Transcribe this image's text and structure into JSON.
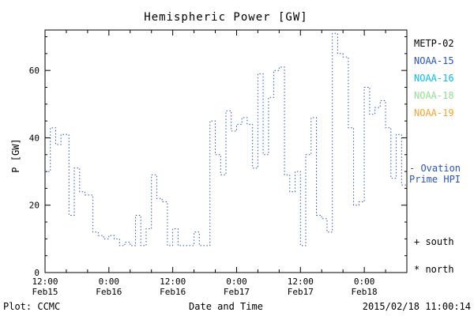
{
  "title": "Hemispheric Power [GW]",
  "ylabel": "P [GW]",
  "xlabel": "Date and Time",
  "footer": {
    "left": "Plot: CCMC",
    "right": "2015/02/18 11:00:14"
  },
  "legend": [
    {
      "label": "METP-02",
      "color": "#000000"
    },
    {
      "label": "NOAA-15",
      "color": "#2a52cc"
    },
    {
      "label": "NOAA-16",
      "color": "#00c0f0"
    },
    {
      "label": "NOAA-18",
      "color": "#90e090"
    },
    {
      "label": "NOAA-19",
      "color": "#ffa030"
    }
  ],
  "annotations": {
    "ovation_line1": "- Ovation",
    "ovation_line2": "Prime HPI",
    "south": "+ south",
    "north": "* north"
  },
  "chart_data": {
    "type": "line",
    "line_style": "dotted-step",
    "title": "Hemispheric Power [GW]",
    "xlabel": "Date and Time",
    "ylabel": "P [GW]",
    "x_unit": "hours since 2015-02-15 12:00",
    "xlim": [
      0,
      68
    ],
    "ylim": [
      0,
      72
    ],
    "x_minor_step": 4,
    "y_minor_step": 5,
    "x_ticks": [
      {
        "t": 0,
        "time": "12:00",
        "date": "Feb15"
      },
      {
        "t": 12,
        "time": "0:00",
        "date": "Feb16"
      },
      {
        "t": 24,
        "time": "12:00",
        "date": "Feb16"
      },
      {
        "t": 36,
        "time": "0:00",
        "date": "Feb17"
      },
      {
        "t": 48,
        "time": "12:00",
        "date": "Feb17"
      },
      {
        "t": 60,
        "time": "0:00",
        "date": "Feb18"
      }
    ],
    "y_ticks": [
      0,
      20,
      40,
      60
    ],
    "series": [
      {
        "name": "Ovation Prime HPI",
        "color": "#2a52cc",
        "x": [
          0,
          1,
          2,
          3,
          4.5,
          5.5,
          6.5,
          7.5,
          9,
          10,
          11,
          12,
          13,
          14,
          15,
          16,
          17,
          18,
          19,
          20,
          21,
          22,
          23,
          24,
          25,
          26,
          27,
          28,
          29,
          30,
          31,
          32,
          33,
          34,
          35,
          36,
          37,
          38,
          39,
          40,
          41,
          42,
          43,
          44,
          45,
          46,
          47,
          48,
          49,
          50,
          51,
          52,
          53,
          54,
          55,
          56,
          57,
          58,
          59,
          60,
          61,
          62,
          63,
          64,
          65,
          66,
          67
        ],
        "y": [
          30,
          43,
          38,
          41,
          17,
          31,
          24,
          23,
          12,
          11,
          10,
          11,
          10,
          8,
          9,
          8,
          17,
          8,
          13,
          29,
          22,
          21,
          8,
          13,
          8,
          8,
          8,
          12,
          8,
          8,
          45,
          35,
          29,
          48,
          42,
          44,
          46,
          44,
          31,
          59,
          35,
          52,
          60,
          61,
          29,
          24,
          30,
          8,
          35,
          46,
          17,
          16,
          12,
          71,
          65,
          64,
          43,
          20,
          21,
          55,
          47,
          49,
          51,
          43,
          28,
          41,
          26
        ]
      }
    ]
  }
}
